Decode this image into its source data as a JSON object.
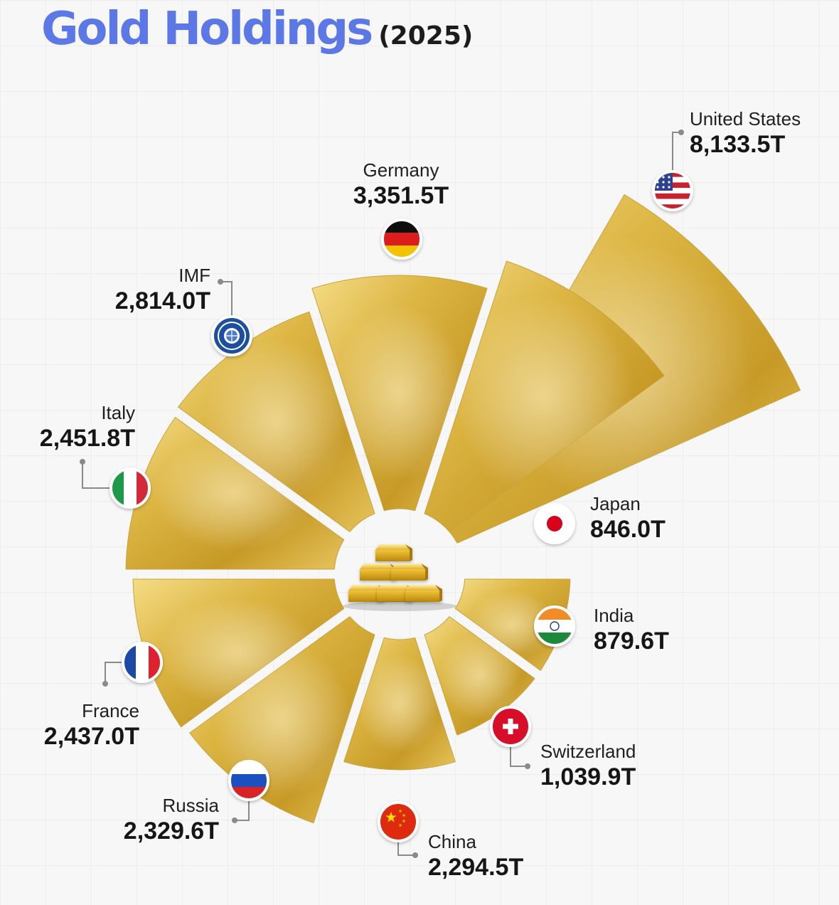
{
  "header": {
    "title": "Gold Holdings",
    "subtitle": "(2025)"
  },
  "chart_data": {
    "type": "pie",
    "title": "Gold Holdings",
    "subtitle": "(2025)",
    "unit": "T",
    "series": [
      {
        "name": "United States",
        "value": 8133.5,
        "label": "8,133.5T",
        "flag": "us-flag-icon"
      },
      {
        "name": "Japan",
        "value": 846.0,
        "label": "846.0T",
        "flag": "japan-flag-icon"
      },
      {
        "name": "India",
        "value": 879.6,
        "label": "879.6T",
        "flag": "india-flag-icon"
      },
      {
        "name": "Switzerland",
        "value": 1039.9,
        "label": "1,039.9T",
        "flag": "switzerland-flag-icon"
      },
      {
        "name": "China",
        "value": 2294.5,
        "label": "2,294.5T",
        "flag": "china-flag-icon"
      },
      {
        "name": "Russia",
        "value": 2329.6,
        "label": "2,329.6T",
        "flag": "russia-flag-icon"
      },
      {
        "name": "France",
        "value": 2437.0,
        "label": "2,437.0T",
        "flag": "france-flag-icon"
      },
      {
        "name": "Italy",
        "value": 2451.8,
        "label": "2,451.8T",
        "flag": "italy-flag-icon"
      },
      {
        "name": "IMF",
        "value": 2814.0,
        "label": "2,814.0T",
        "flag": "imf-seal-icon"
      },
      {
        "name": "Germany",
        "value": 3351.5,
        "label": "3,351.5T",
        "flag": "germany-flag-icon"
      }
    ]
  }
}
